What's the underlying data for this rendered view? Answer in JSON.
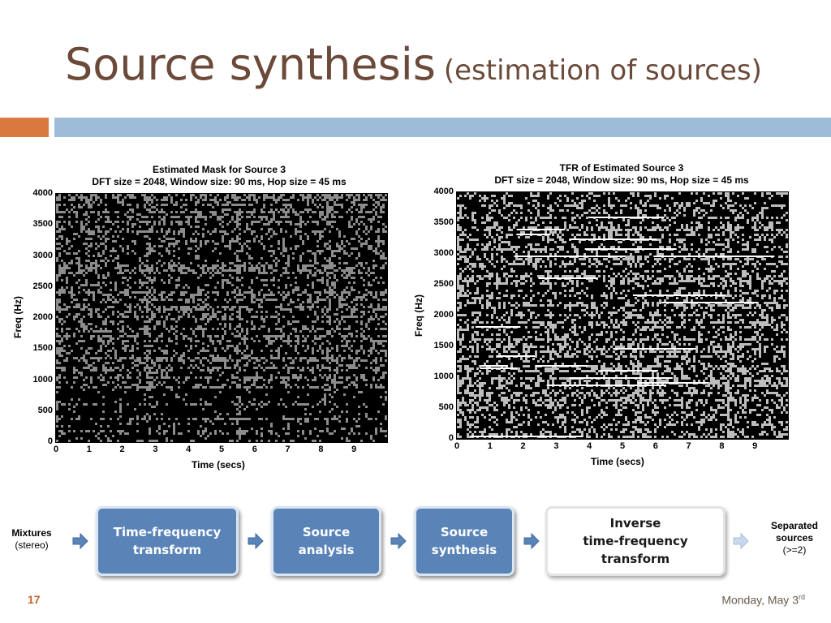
{
  "slide": {
    "title_main": "Source synthesis",
    "title_sub": "(estimation of sources)",
    "number": "17",
    "date": "Monday, May 3",
    "date_suffix": "rd"
  },
  "figures": {
    "left": {
      "title_line1": "Estimated Mask for Source 3",
      "title_line2": "DFT size = 2048, Window size: 90 ms, Hop size = 45 ms",
      "xlabel": "Time (secs)",
      "ylabel": "Freq (Hz)"
    },
    "right": {
      "title_line1": "TFR of Estimated Source 3",
      "title_line2": "DFT size = 2048, Window size: 90 ms, Hop size = 45 ms",
      "xlabel": "Time (secs)",
      "ylabel": "Freq (Hz)"
    }
  },
  "chart_data": [
    {
      "type": "heatmap",
      "title": "Estimated Mask for Source 3\nDFT size = 2048, Window size: 90 ms, Hop size = 45 ms",
      "xlabel": "Time (secs)",
      "ylabel": "Freq (Hz)",
      "xlim": [
        0,
        10
      ],
      "ylim": [
        0,
        4000
      ],
      "xticks": [
        0,
        1,
        2,
        3,
        4,
        5,
        6,
        7,
        8,
        9
      ],
      "yticks": [
        0,
        500,
        1000,
        1500,
        2000,
        2500,
        3000,
        3500,
        4000
      ],
      "colormap": "gray (binary mask, dark background with gray pixels)"
    },
    {
      "type": "heatmap",
      "title": "TFR of Estimated Source 3\nDFT size = 2048, Window size: 90 ms, Hop size = 45 ms",
      "xlabel": "Time (secs)",
      "ylabel": "Freq (Hz)",
      "xlim": [
        0,
        10
      ],
      "ylim": [
        0,
        4000
      ],
      "xticks": [
        0,
        1,
        2,
        3,
        4,
        5,
        6,
        7,
        8,
        9
      ],
      "yticks": [
        0,
        500,
        1000,
        1500,
        2000,
        2500,
        3000,
        3500,
        4000
      ],
      "colormap": "gray (black background with white harmonic lines)"
    }
  ],
  "flow": {
    "input_bold": "Mixtures",
    "input_sub": "(stereo)",
    "steps": [
      {
        "line1": "Time-frequency",
        "line2": "transform"
      },
      {
        "line1": "Source",
        "line2": "analysis"
      },
      {
        "line1": "Source",
        "line2": "synthesis"
      },
      {
        "line1": "Inverse",
        "line2": "time-frequency",
        "line3": "transform"
      }
    ],
    "output_line1": "Separated",
    "output_line2": "sources",
    "output_line3": "(>=2)"
  },
  "colors": {
    "title": "#6b4a3a",
    "accent_orange": "#d9793f",
    "accent_blue": "#9dbcd8",
    "box_blue": "#5a84b8",
    "slide_number": "#c9602a"
  }
}
